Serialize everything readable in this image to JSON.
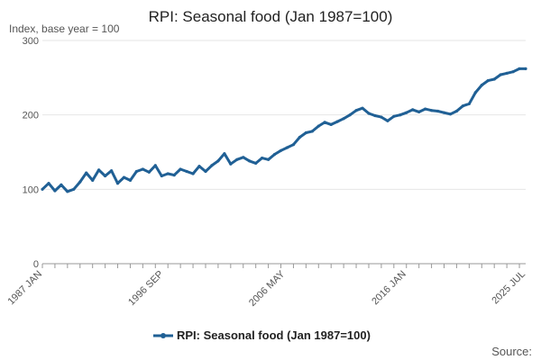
{
  "chart_data": {
    "type": "line",
    "title": "RPI: Seasonal food (Jan 1987=100)",
    "subtitle": "Index, base year = 100",
    "xlabel": "",
    "ylabel": "",
    "x_ticks": [
      "1987 JAN",
      "1996 SEP",
      "2006 MAY",
      "2016 JAN",
      "2025 JUL"
    ],
    "x_range": [
      "1987-01",
      "2025-07"
    ],
    "ylim": [
      0,
      300
    ],
    "y_ticks": [
      0,
      100,
      200,
      300
    ],
    "grid": true,
    "legend_position": "bottom",
    "series_color": "#206095",
    "source_label": "Source:",
    "series": [
      {
        "name": "RPI: Seasonal food (Jan 1987=100)",
        "x": [
          "1987-01",
          "1987-07",
          "1988-01",
          "1988-07",
          "1989-01",
          "1989-07",
          "1990-01",
          "1990-07",
          "1991-01",
          "1991-07",
          "1992-01",
          "1992-07",
          "1993-01",
          "1993-07",
          "1994-01",
          "1994-07",
          "1995-01",
          "1995-07",
          "1996-01",
          "1996-07",
          "1997-01",
          "1997-07",
          "1998-01",
          "1998-07",
          "1999-01",
          "1999-07",
          "2000-01",
          "2000-07",
          "2001-01",
          "2001-07",
          "2002-01",
          "2002-07",
          "2003-01",
          "2003-07",
          "2004-01",
          "2004-07",
          "2005-01",
          "2005-07",
          "2006-01",
          "2006-07",
          "2007-01",
          "2007-07",
          "2008-01",
          "2008-07",
          "2009-01",
          "2009-07",
          "2010-01",
          "2010-07",
          "2011-01",
          "2011-07",
          "2012-01",
          "2012-07",
          "2013-01",
          "2013-07",
          "2014-01",
          "2014-07",
          "2015-01",
          "2015-07",
          "2016-01",
          "2016-07",
          "2017-01",
          "2017-07",
          "2018-01",
          "2018-07",
          "2019-01",
          "2019-07",
          "2020-01",
          "2020-07",
          "2021-01",
          "2021-07",
          "2022-01",
          "2022-07",
          "2023-01",
          "2023-07",
          "2024-01",
          "2024-07",
          "2025-01",
          "2025-07"
        ],
        "values": [
          100,
          108,
          98,
          106,
          97,
          100,
          110,
          122,
          112,
          126,
          118,
          125,
          108,
          116,
          112,
          124,
          127,
          123,
          132,
          118,
          121,
          119,
          127,
          124,
          121,
          131,
          124,
          132,
          138,
          148,
          134,
          140,
          143,
          138,
          135,
          142,
          140,
          147,
          152,
          156,
          160,
          170,
          176,
          178,
          185,
          190,
          187,
          191,
          195,
          200,
          206,
          209,
          202,
          199,
          197,
          192,
          198,
          200,
          203,
          207,
          204,
          208,
          206,
          205,
          203,
          201,
          205,
          212,
          215,
          230,
          240,
          246,
          248,
          254,
          256,
          258,
          262,
          262
        ]
      }
    ]
  }
}
